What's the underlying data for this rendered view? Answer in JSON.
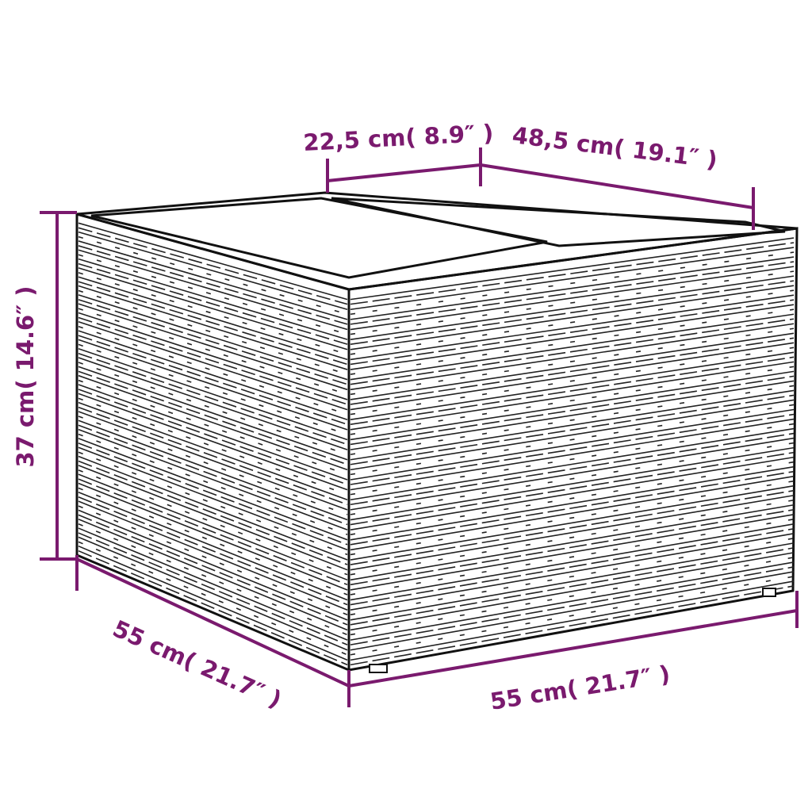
{
  "product": "rattan storage side table with glass top",
  "colors": {
    "dimension": "#7a1a6e",
    "outline": "#111111",
    "background": "#ffffff"
  },
  "dimensions": {
    "top_section_width": "22,5 cm( 8.9″ )",
    "top_depth": "48,5 cm( 19.1″ )",
    "height": "37 cm( 14.6″ )",
    "left_depth": "55 cm( 21.7″ )",
    "front_width": "55 cm( 21.7″ )"
  }
}
